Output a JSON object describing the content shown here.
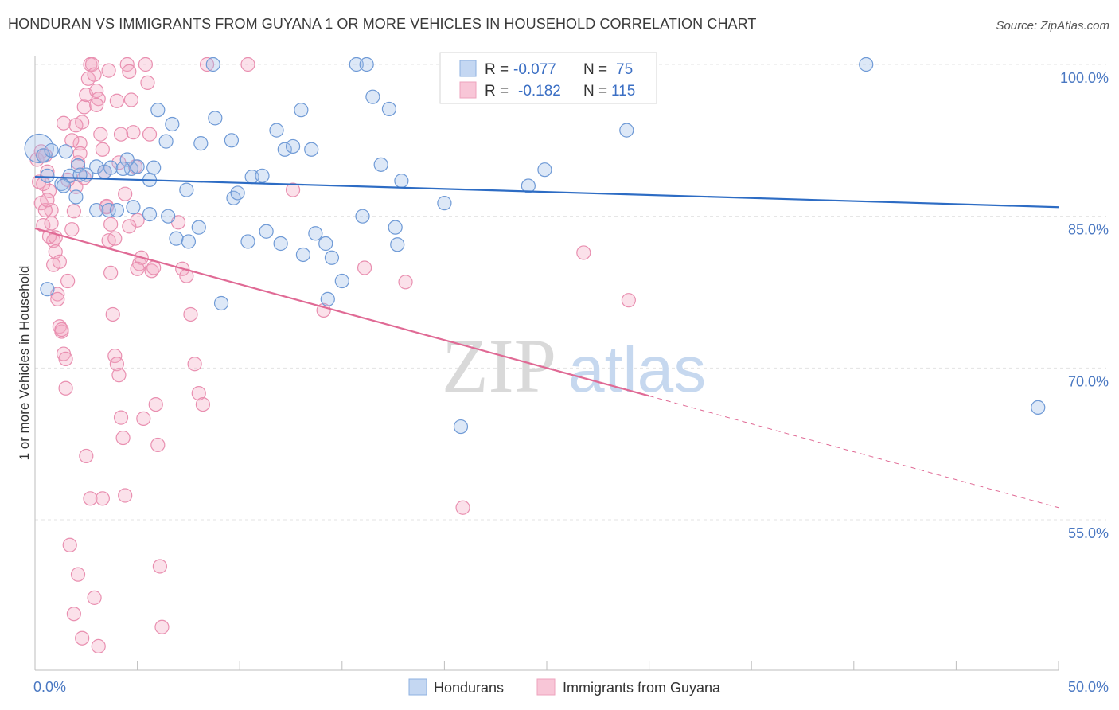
{
  "header": {
    "title": "HONDURAN VS IMMIGRANTS FROM GUYANA 1 OR MORE VEHICLES IN HOUSEHOLD CORRELATION CHART",
    "source": "Source: ZipAtlas.com"
  },
  "watermark": {
    "zip": "ZIP",
    "atlas": "atlas"
  },
  "colors": {
    "blue": "#9dbde8",
    "blue_line": "#2d6cc4",
    "pink": "#f3a9c2",
    "pink_line": "#e06a95",
    "tick": "#4a78c2",
    "grid": "#e3e3e3"
  },
  "chart_data": {
    "type": "scatter",
    "title": "HONDURAN VS IMMIGRANTS FROM GUYANA 1 OR MORE VEHICLES IN HOUSEHOLD CORRELATION CHART",
    "xlabel": "",
    "ylabel": "1 or more Vehicles in Household",
    "xlim": [
      0,
      50
    ],
    "ylim": [
      40,
      102
    ],
    "x_tick_labels": [
      "0.0%",
      "50.0%"
    ],
    "y_ticks": [
      55,
      70,
      85,
      100
    ],
    "y_tick_labels": [
      "55.0%",
      "70.0%",
      "85.0%",
      "100.0%"
    ],
    "grid": true,
    "legend_position": "top-center",
    "legend": [
      {
        "r_label": "R =",
        "r_value": "-0.077",
        "n_label": "N =",
        "n_value": "75"
      },
      {
        "r_label": "R =",
        "r_value": "-0.182",
        "n_label": "N =",
        "n_value": "115"
      }
    ],
    "series": [
      {
        "name": "Hondurans",
        "color": "#9dbde8",
        "trend": {
          "x0": 0,
          "y0": 88.9,
          "x1": 50,
          "y1": 85.9,
          "solid_until": 50
        },
        "points": [
          [
            0.2,
            91.7
          ],
          [
            0.4,
            91.0
          ],
          [
            0.6,
            89.0
          ],
          [
            0.8,
            91.5
          ],
          [
            1.3,
            88.2
          ],
          [
            1.5,
            91.4
          ],
          [
            1.7,
            89.0
          ],
          [
            2.1,
            90.0
          ],
          [
            2.5,
            89.1
          ],
          [
            2.0,
            86.9
          ],
          [
            3.0,
            89.9
          ],
          [
            3.4,
            89.4
          ],
          [
            3.6,
            85.6
          ],
          [
            3.0,
            85.6
          ],
          [
            4.7,
            89.7
          ],
          [
            5.0,
            89.9
          ],
          [
            4.8,
            85.9
          ],
          [
            4.5,
            90.6
          ],
          [
            5.6,
            88.6
          ],
          [
            6.4,
            92.4
          ],
          [
            6.7,
            94.1
          ],
          [
            6.0,
            95.5
          ],
          [
            5.8,
            89.8
          ],
          [
            6.9,
            82.8
          ],
          [
            7.4,
            87.6
          ],
          [
            8.1,
            92.2
          ],
          [
            8.0,
            83.9
          ],
          [
            8.8,
            94.7
          ],
          [
            9.6,
            92.5
          ],
          [
            9.7,
            86.8
          ],
          [
            9.9,
            87.3
          ],
          [
            10.6,
            88.9
          ],
          [
            11.1,
            89.0
          ],
          [
            11.8,
            93.5
          ],
          [
            12.2,
            91.6
          ],
          [
            12.6,
            91.9
          ],
          [
            13.0,
            95.5
          ],
          [
            13.5,
            91.6
          ],
          [
            13.7,
            83.3
          ],
          [
            14.2,
            82.3
          ],
          [
            13.1,
            81.2
          ],
          [
            14.5,
            80.9
          ],
          [
            15.0,
            78.6
          ],
          [
            14.3,
            76.8
          ],
          [
            15.7,
            100.0
          ],
          [
            16.2,
            100.0
          ],
          [
            16.0,
            85.0
          ],
          [
            16.5,
            96.8
          ],
          [
            16.9,
            90.1
          ],
          [
            17.3,
            95.6
          ],
          [
            17.6,
            83.9
          ],
          [
            17.7,
            82.2
          ],
          [
            17.9,
            88.5
          ],
          [
            20.0,
            86.3
          ],
          [
            20.8,
            64.2
          ],
          [
            23.2,
            100.0
          ],
          [
            24.1,
            88.0
          ],
          [
            24.9,
            89.6
          ],
          [
            28.9,
            93.5
          ],
          [
            40.6,
            100.0
          ],
          [
            49.0,
            66.1
          ],
          [
            8.7,
            100.0
          ],
          [
            10.4,
            82.5
          ],
          [
            11.3,
            83.5
          ],
          [
            12.0,
            82.3
          ],
          [
            7.5,
            82.5
          ],
          [
            9.1,
            76.4
          ],
          [
            6.5,
            85.0
          ],
          [
            5.6,
            85.2
          ],
          [
            4.0,
            85.6
          ],
          [
            0.6,
            77.8
          ],
          [
            1.4,
            88.0
          ],
          [
            2.2,
            89.1
          ],
          [
            3.7,
            89.8
          ],
          [
            4.3,
            89.7
          ]
        ]
      },
      {
        "name": "Immigrants from Guyana",
        "color": "#f3a9c2",
        "trend": {
          "x0": 0,
          "y0": 83.8,
          "x1": 50,
          "y1": 56.2,
          "solid_until": 30
        },
        "points": [
          [
            0.1,
            90.6
          ],
          [
            0.2,
            88.4
          ],
          [
            0.3,
            86.3
          ],
          [
            0.4,
            84.1
          ],
          [
            0.5,
            91.0
          ],
          [
            0.6,
            89.4
          ],
          [
            0.7,
            87.5
          ],
          [
            0.8,
            85.6
          ],
          [
            0.9,
            82.6
          ],
          [
            1.0,
            81.5
          ],
          [
            1.1,
            77.3
          ],
          [
            1.2,
            74.1
          ],
          [
            1.3,
            73.6
          ],
          [
            1.4,
            71.4
          ],
          [
            1.5,
            68.0
          ],
          [
            1.6,
            78.6
          ],
          [
            1.8,
            83.7
          ],
          [
            1.9,
            85.5
          ],
          [
            2.0,
            87.9
          ],
          [
            2.1,
            90.3
          ],
          [
            2.2,
            92.2
          ],
          [
            2.3,
            94.3
          ],
          [
            2.4,
            95.8
          ],
          [
            2.5,
            97.0
          ],
          [
            2.6,
            98.6
          ],
          [
            2.7,
            100.0
          ],
          [
            2.8,
            100.0
          ],
          [
            2.9,
            99.0
          ],
          [
            3.0,
            97.4
          ],
          [
            3.1,
            96.6
          ],
          [
            3.2,
            93.1
          ],
          [
            3.3,
            91.6
          ],
          [
            3.4,
            89.4
          ],
          [
            3.5,
            85.9
          ],
          [
            3.6,
            82.6
          ],
          [
            3.7,
            79.4
          ],
          [
            3.8,
            75.3
          ],
          [
            3.9,
            71.2
          ],
          [
            4.0,
            70.4
          ],
          [
            4.1,
            69.3
          ],
          [
            4.2,
            65.1
          ],
          [
            4.3,
            63.1
          ],
          [
            4.4,
            57.4
          ],
          [
            4.5,
            100.0
          ],
          [
            4.6,
            99.3
          ],
          [
            4.7,
            96.5
          ],
          [
            4.8,
            93.3
          ],
          [
            4.9,
            89.9
          ],
          [
            5.0,
            84.6
          ],
          [
            5.1,
            80.3
          ],
          [
            5.2,
            80.9
          ],
          [
            5.3,
            65.0
          ],
          [
            5.4,
            100.0
          ],
          [
            5.5,
            98.2
          ],
          [
            5.6,
            93.1
          ],
          [
            5.7,
            79.6
          ],
          [
            5.8,
            79.9
          ],
          [
            5.9,
            66.4
          ],
          [
            6.0,
            62.4
          ],
          [
            6.1,
            50.4
          ],
          [
            6.2,
            44.4
          ],
          [
            7.0,
            84.4
          ],
          [
            7.2,
            79.8
          ],
          [
            7.4,
            79.1
          ],
          [
            7.6,
            75.3
          ],
          [
            7.8,
            70.4
          ],
          [
            8.0,
            67.5
          ],
          [
            8.2,
            66.4
          ],
          [
            8.4,
            100.0
          ],
          [
            10.4,
            100.0
          ],
          [
            12.6,
            87.6
          ],
          [
            14.1,
            75.7
          ],
          [
            16.1,
            79.9
          ],
          [
            18.1,
            78.5
          ],
          [
            20.9,
            56.2
          ],
          [
            26.8,
            81.4
          ],
          [
            29.0,
            76.7
          ],
          [
            0.3,
            91.4
          ],
          [
            0.5,
            85.6
          ],
          [
            0.7,
            83.0
          ],
          [
            0.9,
            80.2
          ],
          [
            1.1,
            76.8
          ],
          [
            1.3,
            73.8
          ],
          [
            1.5,
            70.9
          ],
          [
            1.7,
            52.5
          ],
          [
            1.9,
            45.7
          ],
          [
            2.1,
            49.6
          ],
          [
            2.3,
            43.3
          ],
          [
            2.5,
            61.3
          ],
          [
            2.7,
            57.1
          ],
          [
            2.9,
            47.3
          ],
          [
            3.1,
            42.5
          ],
          [
            3.3,
            57.1
          ],
          [
            3.5,
            86.0
          ],
          [
            3.7,
            84.2
          ],
          [
            3.9,
            82.8
          ],
          [
            4.1,
            90.3
          ],
          [
            1.4,
            94.2
          ],
          [
            1.6,
            88.6
          ],
          [
            1.8,
            92.5
          ],
          [
            2.0,
            94.0
          ],
          [
            2.2,
            91.2
          ],
          [
            0.4,
            88.2
          ],
          [
            0.6,
            86.6
          ],
          [
            0.8,
            84.3
          ],
          [
            1.0,
            82.9
          ],
          [
            1.2,
            80.5
          ],
          [
            2.4,
            88.8
          ],
          [
            3.0,
            96.0
          ],
          [
            3.6,
            99.4
          ],
          [
            4.0,
            96.4
          ],
          [
            4.2,
            93.1
          ],
          [
            4.4,
            87.2
          ],
          [
            4.6,
            84.0
          ],
          [
            5.0,
            79.8
          ]
        ]
      }
    ]
  },
  "bottom_legend": [
    {
      "label": "Hondurans"
    },
    {
      "label": "Immigrants from Guyana"
    }
  ]
}
